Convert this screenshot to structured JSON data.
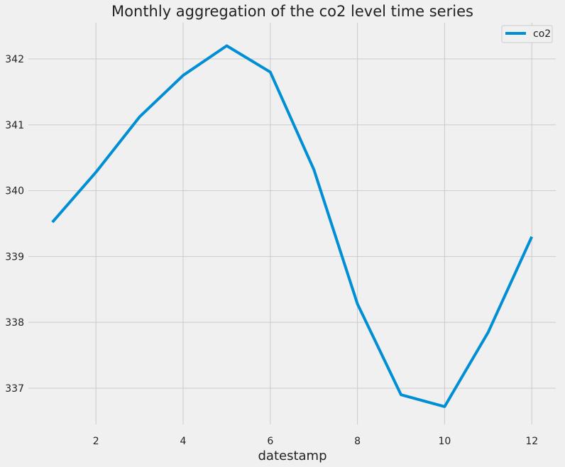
{
  "chart_data": {
    "type": "line",
    "title": "Monthly aggregation of the co2 level time series",
    "xlabel": "datestamp",
    "ylabel": "",
    "x": [
      1,
      2,
      3,
      4,
      5,
      6,
      7,
      8,
      9,
      10,
      11,
      12
    ],
    "series": [
      {
        "name": "co2",
        "values": [
          339.52,
          340.28,
          341.12,
          341.75,
          342.2,
          341.8,
          340.32,
          338.28,
          336.9,
          336.72,
          337.85,
          339.3
        ],
        "color": "#008fd5"
      }
    ],
    "xlim": [
      0.45,
      12.55
    ],
    "ylim": [
      336.45,
      342.55
    ],
    "xticks": [
      2,
      4,
      6,
      8,
      10,
      12
    ],
    "xtick_labels": [
      "2",
      "4",
      "6",
      "8",
      "10",
      "12"
    ],
    "yticks": [
      337,
      338,
      339,
      340,
      341,
      342
    ],
    "ytick_labels": [
      "337",
      "338",
      "339",
      "340",
      "341",
      "342"
    ],
    "grid": true,
    "legend_position": "top-right",
    "background_color": "#f0f0f0",
    "grid_color": "#cbcbcb"
  }
}
